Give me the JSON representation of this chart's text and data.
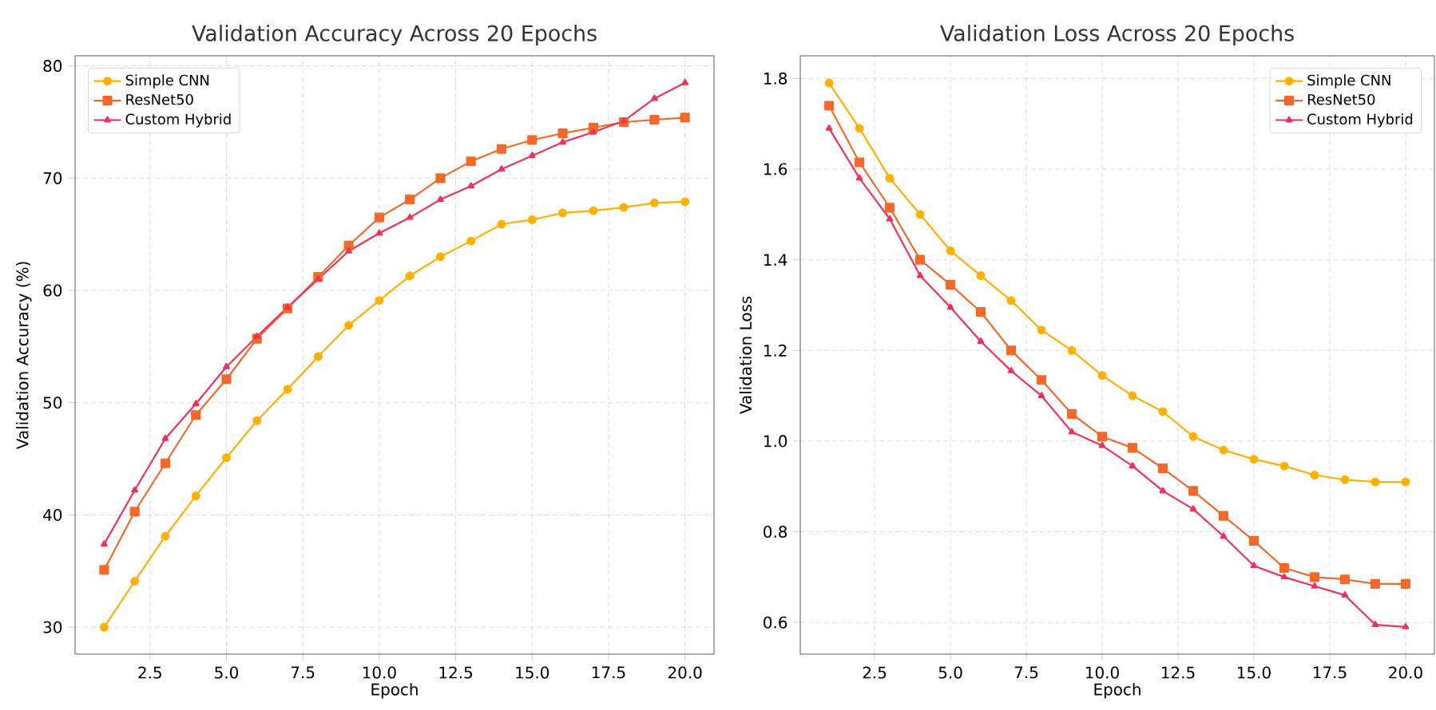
{
  "chart_data": [
    {
      "type": "line",
      "title": "Validation Accuracy Across 20 Epochs",
      "xlabel": "Epoch",
      "ylabel": "Validation Accuracy (%)",
      "x": [
        1,
        2,
        3,
        4,
        5,
        6,
        7,
        8,
        9,
        10,
        11,
        12,
        13,
        14,
        15,
        16,
        17,
        18,
        19,
        20
      ],
      "xlim": [
        0.05,
        20.95
      ],
      "ylim": [
        27.6,
        80.9
      ],
      "xticks": [
        {
          "value": 2.5,
          "label": "2.5"
        },
        {
          "value": 5,
          "label": "5.0"
        },
        {
          "value": 7.5,
          "label": "7.5"
        },
        {
          "value": 10,
          "label": "10.0"
        },
        {
          "value": 12.5,
          "label": "12.5"
        },
        {
          "value": 15,
          "label": "15.0"
        },
        {
          "value": 17.5,
          "label": "17.5"
        },
        {
          "value": 20,
          "label": "20.0"
        }
      ],
      "yticks": [
        30,
        40,
        50,
        60,
        70,
        80
      ],
      "grid": true,
      "legend": "top left",
      "line_style": "solid",
      "series": [
        {
          "name": "Simple CNN",
          "color": "#ffb000",
          "marker": "circle",
          "values": [
            30.0,
            34.1,
            38.1,
            41.7,
            45.1,
            48.4,
            51.2,
            54.1,
            56.9,
            59.1,
            61.3,
            63.0,
            64.4,
            65.9,
            66.3,
            66.9,
            67.1,
            67.4,
            67.8,
            67.9
          ]
        },
        {
          "name": "ResNet50",
          "color": "#f4692a",
          "marker": "square",
          "values": [
            35.1,
            40.3,
            44.6,
            48.9,
            52.1,
            55.7,
            58.4,
            61.2,
            64.0,
            66.5,
            68.1,
            70.0,
            71.5,
            72.6,
            73.4,
            74.0,
            74.5,
            75.0,
            75.2,
            75.4
          ]
        },
        {
          "name": "Custom Hybrid",
          "color": "#f0325a",
          "marker": "triangle",
          "values": [
            37.4,
            42.2,
            46.8,
            49.9,
            53.2,
            55.9,
            58.5,
            61.0,
            63.5,
            65.1,
            66.5,
            68.1,
            69.3,
            70.8,
            72.0,
            73.2,
            74.1,
            75.1,
            77.1,
            78.5
          ]
        }
      ]
    },
    {
      "type": "line",
      "title": "Validation Loss Across 20 Epochs",
      "xlabel": "Epoch",
      "ylabel": "Validation Loss",
      "x": [
        1,
        2,
        3,
        4,
        5,
        6,
        7,
        8,
        9,
        10,
        11,
        12,
        13,
        14,
        15,
        16,
        17,
        18,
        19,
        20
      ],
      "xlim": [
        0.05,
        20.95
      ],
      "ylim": [
        0.53,
        1.85
      ],
      "xticks": [
        {
          "value": 2.5,
          "label": "2.5"
        },
        {
          "value": 5,
          "label": "5.0"
        },
        {
          "value": 7.5,
          "label": "7.5"
        },
        {
          "value": 10,
          "label": "10.0"
        },
        {
          "value": 12.5,
          "label": "12.5"
        },
        {
          "value": 15,
          "label": "15.0"
        },
        {
          "value": 17.5,
          "label": "17.5"
        },
        {
          "value": 20,
          "label": "20.0"
        }
      ],
      "yticks": [
        {
          "value": 0.6,
          "label": "0.6"
        },
        {
          "value": 0.8,
          "label": "0.8"
        },
        {
          "value": 1.0,
          "label": "1.0"
        },
        {
          "value": 1.2,
          "label": "1.2"
        },
        {
          "value": 1.4,
          "label": "1.4"
        },
        {
          "value": 1.6,
          "label": "1.6"
        },
        {
          "value": 1.8,
          "label": "1.8"
        }
      ],
      "grid": true,
      "legend": "top right",
      "line_style": "solid",
      "series": [
        {
          "name": "Simple CNN",
          "color": "#ffb000",
          "marker": "circle",
          "values": [
            1.79,
            1.69,
            1.58,
            1.5,
            1.42,
            1.365,
            1.31,
            1.245,
            1.2,
            1.145,
            1.1,
            1.065,
            1.01,
            0.98,
            0.96,
            0.945,
            0.925,
            0.915,
            0.91,
            0.91
          ]
        },
        {
          "name": "ResNet50",
          "color": "#f4692a",
          "marker": "square",
          "values": [
            1.74,
            1.615,
            1.515,
            1.4,
            1.345,
            1.285,
            1.2,
            1.135,
            1.06,
            1.01,
            0.985,
            0.94,
            0.89,
            0.835,
            0.78,
            0.72,
            0.7,
            0.695,
            0.685,
            0.685
          ]
        },
        {
          "name": "Custom Hybrid",
          "color": "#f0325a",
          "marker": "triangle",
          "values": [
            1.69,
            1.58,
            1.49,
            1.365,
            1.295,
            1.22,
            1.155,
            1.1,
            1.02,
            0.99,
            0.945,
            0.89,
            0.85,
            0.79,
            0.725,
            0.7,
            0.68,
            0.66,
            0.595,
            0.59
          ]
        }
      ]
    }
  ]
}
